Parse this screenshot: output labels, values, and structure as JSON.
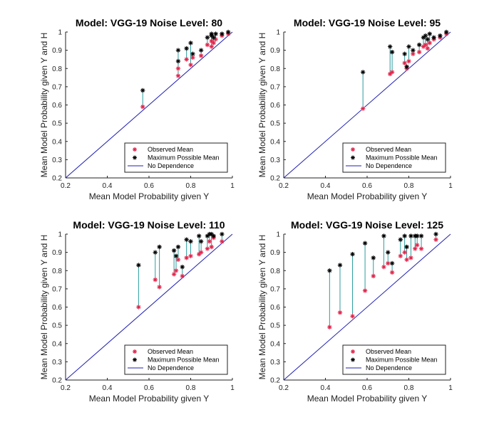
{
  "figure": {
    "description": "Four calibration scatter plots with stems from observed to maximum possible mean",
    "colors": {
      "observed": "#e0244a",
      "maximum": "#000000",
      "stem": "#2a9d9f",
      "diagonal": "#1f1fb4",
      "axis": "#222222"
    }
  },
  "chart_data": [
    {
      "type": "scatter",
      "title": "Model: VGG-19   Noise Level: 80",
      "xlabel": "Mean Model Probability given Y",
      "ylabel": "Mean Model Probability given Y and H",
      "xlim": [
        0.2,
        1
      ],
      "ylim": [
        0.2,
        1
      ],
      "xticks": [
        "0.2",
        "0.4",
        "0.6",
        "0.8",
        "1"
      ],
      "yticks": [
        "0.2",
        "0.3",
        "0.4",
        "0.5",
        "0.6",
        "0.7",
        "0.8",
        "0.9",
        "1"
      ],
      "legend": [
        "Observed Mean",
        "Maximum Possible Mean",
        "No Dependence"
      ],
      "legend_position": "bottom-right",
      "series": [
        {
          "name": "Observed Mean",
          "points": [
            [
              0.57,
              0.59
            ],
            [
              0.74,
              0.76
            ],
            [
              0.74,
              0.8
            ],
            [
              0.78,
              0.85
            ],
            [
              0.8,
              0.82
            ],
            [
              0.81,
              0.86
            ],
            [
              0.85,
              0.87
            ],
            [
              0.88,
              0.93
            ],
            [
              0.9,
              0.92
            ],
            [
              0.9,
              0.95
            ],
            [
              0.91,
              0.94
            ],
            [
              0.92,
              0.96
            ],
            [
              0.95,
              0.98
            ],
            [
              0.98,
              0.99
            ]
          ]
        },
        {
          "name": "Maximum Possible Mean",
          "points": [
            [
              0.57,
              0.68
            ],
            [
              0.74,
              0.9
            ],
            [
              0.74,
              0.84
            ],
            [
              0.78,
              0.91
            ],
            [
              0.8,
              0.94
            ],
            [
              0.81,
              0.88
            ],
            [
              0.85,
              0.9
            ],
            [
              0.88,
              0.97
            ],
            [
              0.9,
              0.98
            ],
            [
              0.9,
              0.99
            ],
            [
              0.91,
              0.97
            ],
            [
              0.92,
              0.99
            ],
            [
              0.95,
              0.99
            ],
            [
              0.98,
              1.0
            ]
          ]
        }
      ]
    },
    {
      "type": "scatter",
      "title": "Model: VGG-19   Noise Level: 95",
      "xlabel": "Mean Model Probability given Y",
      "ylabel": "Mean Model Probability given Y and H",
      "xlim": [
        0.2,
        1
      ],
      "ylim": [
        0.2,
        1
      ],
      "xticks": [
        "0.2",
        "0.4",
        "0.6",
        "0.8",
        "1"
      ],
      "yticks": [
        "0.2",
        "0.3",
        "0.4",
        "0.5",
        "0.6",
        "0.7",
        "0.8",
        "0.9",
        "1"
      ],
      "legend": [
        "Observed Mean",
        "Maximum Possible Mean",
        "No Dependence"
      ],
      "legend_position": "bottom-right",
      "series": [
        {
          "name": "Observed Mean",
          "points": [
            [
              0.58,
              0.58
            ],
            [
              0.71,
              0.77
            ],
            [
              0.72,
              0.78
            ],
            [
              0.78,
              0.83
            ],
            [
              0.79,
              0.8
            ],
            [
              0.8,
              0.84
            ],
            [
              0.82,
              0.88
            ],
            [
              0.85,
              0.89
            ],
            [
              0.87,
              0.92
            ],
            [
              0.88,
              0.93
            ],
            [
              0.89,
              0.91
            ],
            [
              0.9,
              0.94
            ],
            [
              0.92,
              0.96
            ],
            [
              0.95,
              0.97
            ],
            [
              0.98,
              0.99
            ]
          ]
        },
        {
          "name": "Maximum Possible Mean",
          "points": [
            [
              0.58,
              0.78
            ],
            [
              0.71,
              0.92
            ],
            [
              0.72,
              0.89
            ],
            [
              0.78,
              0.88
            ],
            [
              0.79,
              0.81
            ],
            [
              0.8,
              0.92
            ],
            [
              0.82,
              0.9
            ],
            [
              0.85,
              0.93
            ],
            [
              0.87,
              0.97
            ],
            [
              0.88,
              0.98
            ],
            [
              0.89,
              0.96
            ],
            [
              0.9,
              0.99
            ],
            [
              0.92,
              0.97
            ],
            [
              0.95,
              0.98
            ],
            [
              0.98,
              1.0
            ]
          ]
        }
      ]
    },
    {
      "type": "scatter",
      "title": "Model: VGG-19   Noise Level: 110",
      "xlabel": "Mean Model Probability given Y",
      "ylabel": "Mean Model Probability given Y and H",
      "xlim": [
        0.2,
        1
      ],
      "ylim": [
        0.2,
        1
      ],
      "xticks": [
        "0.2",
        "0.4",
        "0.6",
        "0.8",
        "1"
      ],
      "yticks": [
        "0.2",
        "0.3",
        "0.4",
        "0.5",
        "0.6",
        "0.7",
        "0.8",
        "0.9",
        "1"
      ],
      "legend": [
        "Observed Mean",
        "Maximum Possible Mean",
        "No Dependence"
      ],
      "legend_position": "bottom-right",
      "series": [
        {
          "name": "Observed Mean",
          "points": [
            [
              0.55,
              0.6
            ],
            [
              0.63,
              0.75
            ],
            [
              0.65,
              0.71
            ],
            [
              0.72,
              0.78
            ],
            [
              0.73,
              0.8
            ],
            [
              0.74,
              0.86
            ],
            [
              0.76,
              0.77
            ],
            [
              0.78,
              0.87
            ],
            [
              0.8,
              0.88
            ],
            [
              0.84,
              0.89
            ],
            [
              0.85,
              0.9
            ],
            [
              0.88,
              0.92
            ],
            [
              0.89,
              0.96
            ],
            [
              0.9,
              0.93
            ],
            [
              0.91,
              0.98
            ],
            [
              0.95,
              0.96
            ]
          ]
        },
        {
          "name": "Maximum Possible Mean",
          "points": [
            [
              0.55,
              0.83
            ],
            [
              0.63,
              0.9
            ],
            [
              0.65,
              0.93
            ],
            [
              0.72,
              0.91
            ],
            [
              0.73,
              0.88
            ],
            [
              0.74,
              0.93
            ],
            [
              0.76,
              0.82
            ],
            [
              0.78,
              0.97
            ],
            [
              0.8,
              0.96
            ],
            [
              0.84,
              0.99
            ],
            [
              0.85,
              0.96
            ],
            [
              0.88,
              0.99
            ],
            [
              0.89,
              1.0
            ],
            [
              0.9,
              1.0
            ],
            [
              0.91,
              0.99
            ],
            [
              0.95,
              1.0
            ]
          ]
        }
      ]
    },
    {
      "type": "scatter",
      "title": "Model: VGG-19   Noise Level: 125",
      "xlabel": "Mean Model Probability given Y",
      "ylabel": "Mean Model Probability given Y and H",
      "xlim": [
        0.2,
        1
      ],
      "ylim": [
        0.2,
        1
      ],
      "xticks": [
        "0.2",
        "0.4",
        "0.6",
        "0.8",
        "1"
      ],
      "yticks": [
        "0.2",
        "0.3",
        "0.4",
        "0.5",
        "0.6",
        "0.7",
        "0.8",
        "0.9",
        "1"
      ],
      "legend": [
        "Observed Mean",
        "Maximum Possible Mean",
        "No Dependence"
      ],
      "legend_position": "bottom-right",
      "series": [
        {
          "name": "Observed Mean",
          "points": [
            [
              0.42,
              0.49
            ],
            [
              0.47,
              0.57
            ],
            [
              0.53,
              0.55
            ],
            [
              0.59,
              0.69
            ],
            [
              0.63,
              0.77
            ],
            [
              0.68,
              0.82
            ],
            [
              0.7,
              0.84
            ],
            [
              0.72,
              0.79
            ],
            [
              0.76,
              0.88
            ],
            [
              0.78,
              0.9
            ],
            [
              0.79,
              0.86
            ],
            [
              0.81,
              0.87
            ],
            [
              0.83,
              0.92
            ],
            [
              0.84,
              0.94
            ],
            [
              0.86,
              0.92
            ],
            [
              0.93,
              0.97
            ]
          ]
        },
        {
          "name": "Maximum Possible Mean",
          "points": [
            [
              0.42,
              0.8
            ],
            [
              0.47,
              0.83
            ],
            [
              0.53,
              0.89
            ],
            [
              0.59,
              0.95
            ],
            [
              0.63,
              0.87
            ],
            [
              0.68,
              0.99
            ],
            [
              0.7,
              0.9
            ],
            [
              0.72,
              0.84
            ],
            [
              0.76,
              0.97
            ],
            [
              0.78,
              0.99
            ],
            [
              0.79,
              0.93
            ],
            [
              0.81,
              0.99
            ],
            [
              0.83,
              0.99
            ],
            [
              0.84,
              0.99
            ],
            [
              0.86,
              0.99
            ],
            [
              0.93,
              1.0
            ]
          ]
        }
      ]
    }
  ]
}
